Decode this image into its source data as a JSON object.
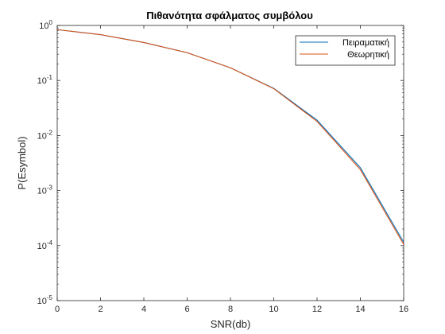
{
  "chart_data": {
    "type": "line",
    "title": "Πιθανότητα σφάλματος συμβόλου",
    "xlabel": "SNR(db)",
    "ylabel": "P(Esymbol)",
    "xlim": [
      0,
      16
    ],
    "ylim": [
      1e-05,
      1
    ],
    "yscale": "log",
    "grid": false,
    "legend_position": "top-right",
    "x": [
      0,
      2,
      4,
      6,
      8,
      10,
      12,
      14,
      16
    ],
    "series": [
      {
        "name": "Πειραματική",
        "color": "#0072BD",
        "values": [
          0.84,
          0.68,
          0.49,
          0.32,
          0.17,
          0.072,
          0.019,
          0.0026,
          0.000115
        ]
      },
      {
        "name": "Θεωρητική",
        "color": "#D95319",
        "values": [
          0.84,
          0.68,
          0.49,
          0.32,
          0.17,
          0.071,
          0.018,
          0.0024,
          0.000105
        ]
      }
    ],
    "xticks": [
      {
        "value": 0,
        "label": "0"
      },
      {
        "value": 2,
        "label": "2"
      },
      {
        "value": 4,
        "label": "4"
      },
      {
        "value": 6,
        "label": "6"
      },
      {
        "value": 8,
        "label": "8"
      },
      {
        "value": 10,
        "label": "10"
      },
      {
        "value": 12,
        "label": "12"
      },
      {
        "value": 14,
        "label": "14"
      },
      {
        "value": 16,
        "label": "16"
      }
    ],
    "yticks": [
      {
        "value": 1,
        "base": "10",
        "exp": "0"
      },
      {
        "value": 0.1,
        "base": "10",
        "exp": "-1"
      },
      {
        "value": 0.01,
        "base": "10",
        "exp": "-2"
      },
      {
        "value": 0.001,
        "base": "10",
        "exp": "-3"
      },
      {
        "value": 0.0001,
        "base": "10",
        "exp": "-4"
      },
      {
        "value": 1e-05,
        "base": "10",
        "exp": "-5"
      }
    ]
  }
}
